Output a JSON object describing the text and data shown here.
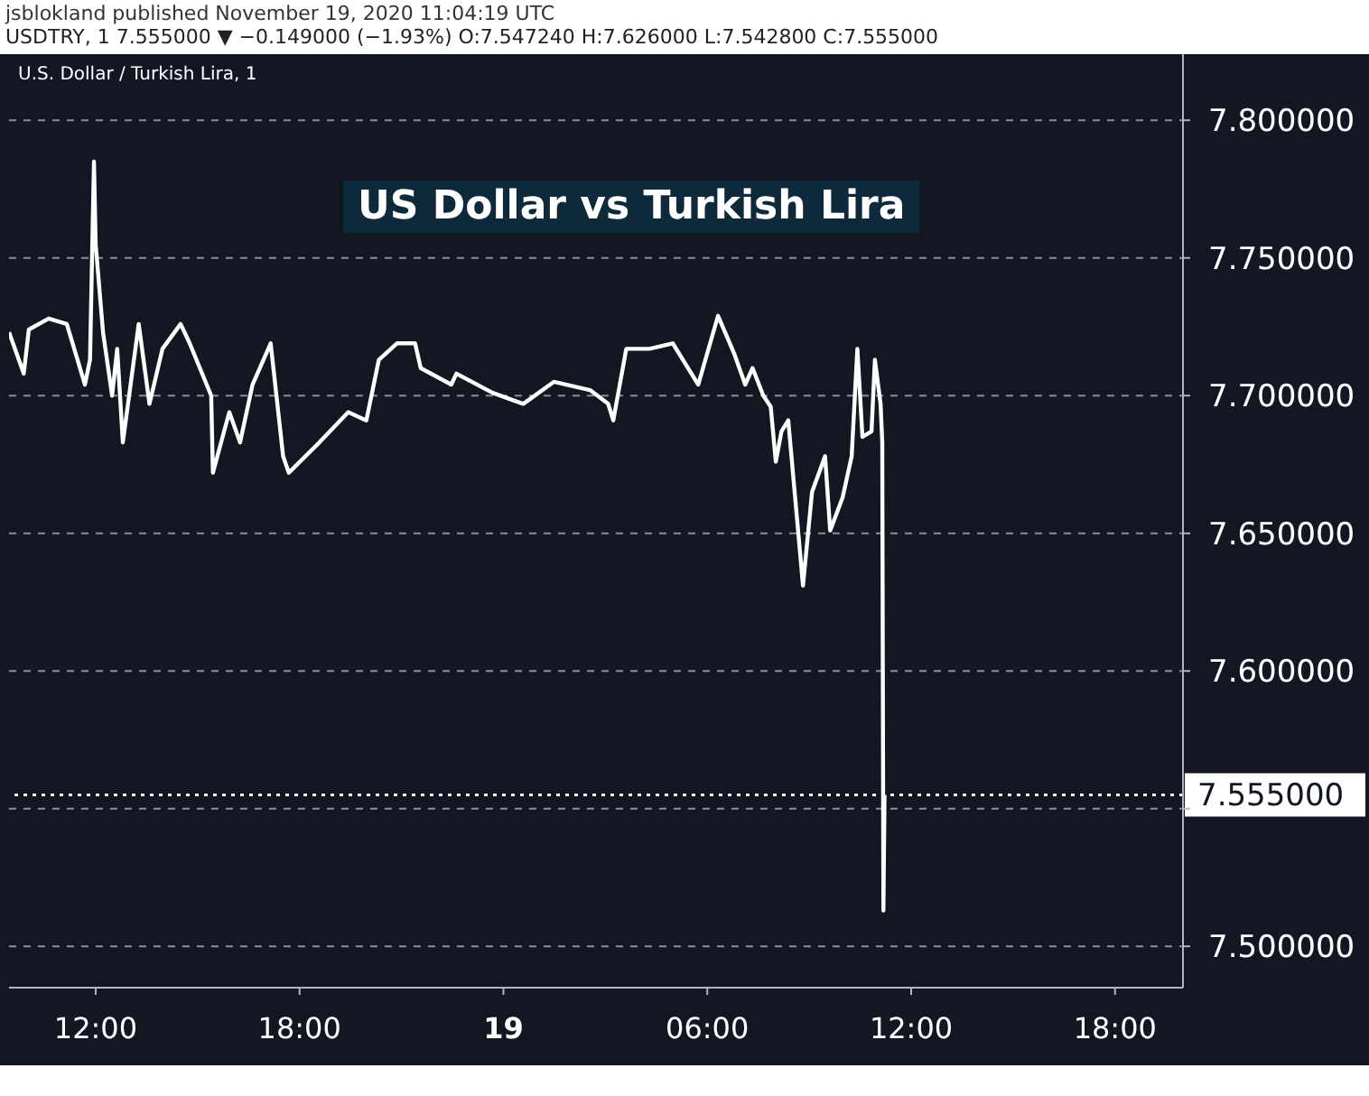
{
  "chart_data": {
    "type": "line",
    "title": "US Dollar vs Turkish Lira",
    "annotations": [
      "jsblokland published November 19, 2020 11:04:19 UTC",
      "USDTRY, 1 7.555000 ▼ −0.149000 (−1.93%) O:7.547240 H:7.626000 L:7.542800 C:7.555000",
      "U.S. Dollar / Turkish Lira, 1"
    ],
    "x": [
      "2020-11-18T09:27",
      "2020-11-18T09:53",
      "2020-11-18T10:02",
      "2020-11-18T10:37",
      "2020-11-18T11:09",
      "2020-11-18T11:28",
      "2020-11-18T11:41",
      "2020-11-18T11:50",
      "2020-11-18T11:57",
      "2020-11-18T12:00",
      "2020-11-18T12:13",
      "2020-11-18T12:29",
      "2020-11-18T12:38",
      "2020-11-18T12:48",
      "2020-11-18T13:16",
      "2020-11-18T13:35",
      "2020-11-18T13:58",
      "2020-11-18T14:30",
      "2020-11-18T14:46",
      "2020-11-18T15:24",
      "2020-11-18T15:27",
      "2020-11-18T15:56",
      "2020-11-18T16:15",
      "2020-11-18T16:37",
      "2020-11-18T17:09",
      "2020-11-18T17:31",
      "2020-11-18T17:41",
      "2020-11-18T18:35",
      "2020-11-18T19:26",
      "2020-11-18T19:58",
      "2020-11-18T20:20",
      "2020-11-18T20:52",
      "2020-11-18T21:24",
      "2020-11-18T21:34",
      "2020-11-18T22:28",
      "2020-11-18T22:37",
      "2020-11-18T23:41",
      "2020-11-19T00:35",
      "2020-11-19T01:29",
      "2020-11-19T02:33",
      "2020-11-19T03:05",
      "2020-11-19T03:14",
      "2020-11-19T03:37",
      "2020-11-19T04:18",
      "2020-11-19T04:59",
      "2020-11-19T05:44",
      "2020-11-19T06:19",
      "2020-11-19T06:48",
      "2020-11-19T07:07",
      "2020-11-19T07:20",
      "2020-11-19T07:39",
      "2020-11-19T07:52",
      "2020-11-19T08:01",
      "2020-11-19T08:11",
      "2020-11-19T08:23",
      "2020-11-19T08:49",
      "2020-11-19T09:05",
      "2020-11-19T09:28",
      "2020-11-19T09:37",
      "2020-11-19T09:59",
      "2020-11-19T10:15",
      "2020-11-19T10:25",
      "2020-11-19T10:34",
      "2020-11-19T10:50",
      "2020-11-19T10:56",
      "2020-11-19T11:06",
      "2020-11-19T11:09",
      "2020-11-19T11:11",
      "2020-11-19T11:13"
    ],
    "series": [
      {
        "color": "#ffffff",
        "values": [
          7.723,
          7.708,
          7.724,
          7.728,
          7.726,
          7.713,
          7.704,
          7.713,
          7.785,
          7.755,
          7.723,
          7.7,
          7.717,
          7.683,
          7.726,
          7.697,
          7.717,
          7.726,
          7.719,
          7.7,
          7.672,
          7.694,
          7.683,
          7.704,
          7.719,
          7.678,
          7.672,
          7.683,
          7.694,
          7.691,
          7.713,
          7.719,
          7.719,
          7.71,
          7.704,
          7.708,
          7.701,
          7.697,
          7.705,
          7.702,
          7.697,
          7.691,
          7.717,
          7.717,
          7.719,
          7.704,
          7.729,
          7.715,
          7.704,
          7.71,
          7.7,
          7.696,
          7.676,
          7.687,
          7.691,
          7.631,
          7.665,
          7.678,
          7.651,
          7.663,
          7.678,
          7.717,
          7.685,
          7.687,
          7.713,
          7.697,
          7.683,
          7.513,
          7.555
        ]
      }
    ],
    "xlim": [
      "2020-11-18T09:27",
      "2020-11-19T20:00"
    ],
    "xticks": [
      {
        "value": "2020-11-18T12:00",
        "label": "12:00"
      },
      {
        "value": "2020-11-18T18:00",
        "label": "18:00"
      },
      {
        "value": "2020-11-19T00:00",
        "label": "19"
      },
      {
        "value": "2020-11-19T06:00",
        "label": "06:00"
      },
      {
        "value": "2020-11-19T12:00",
        "label": "12:00"
      },
      {
        "value": "2020-11-19T18:00",
        "label": "18:00"
      }
    ],
    "ylim": [
      7.485,
      7.824
    ],
    "yticks": [
      {
        "value": 7.5,
        "label": "7.500000"
      },
      {
        "value": 7.55,
        "label": null
      },
      {
        "value": 7.6,
        "label": "7.600000"
      },
      {
        "value": 7.65,
        "label": "7.650000"
      },
      {
        "value": 7.7,
        "label": "7.700000"
      },
      {
        "value": 7.75,
        "label": "7.750000"
      },
      {
        "value": 7.8,
        "label": "7.800000"
      }
    ],
    "ref_lines": [
      {
        "axis": "y",
        "value": 7.555,
        "label": "7.555000",
        "color": "#ffffff",
        "line_style": "dotted"
      }
    ],
    "grid": "y",
    "line_style": "solid"
  }
}
